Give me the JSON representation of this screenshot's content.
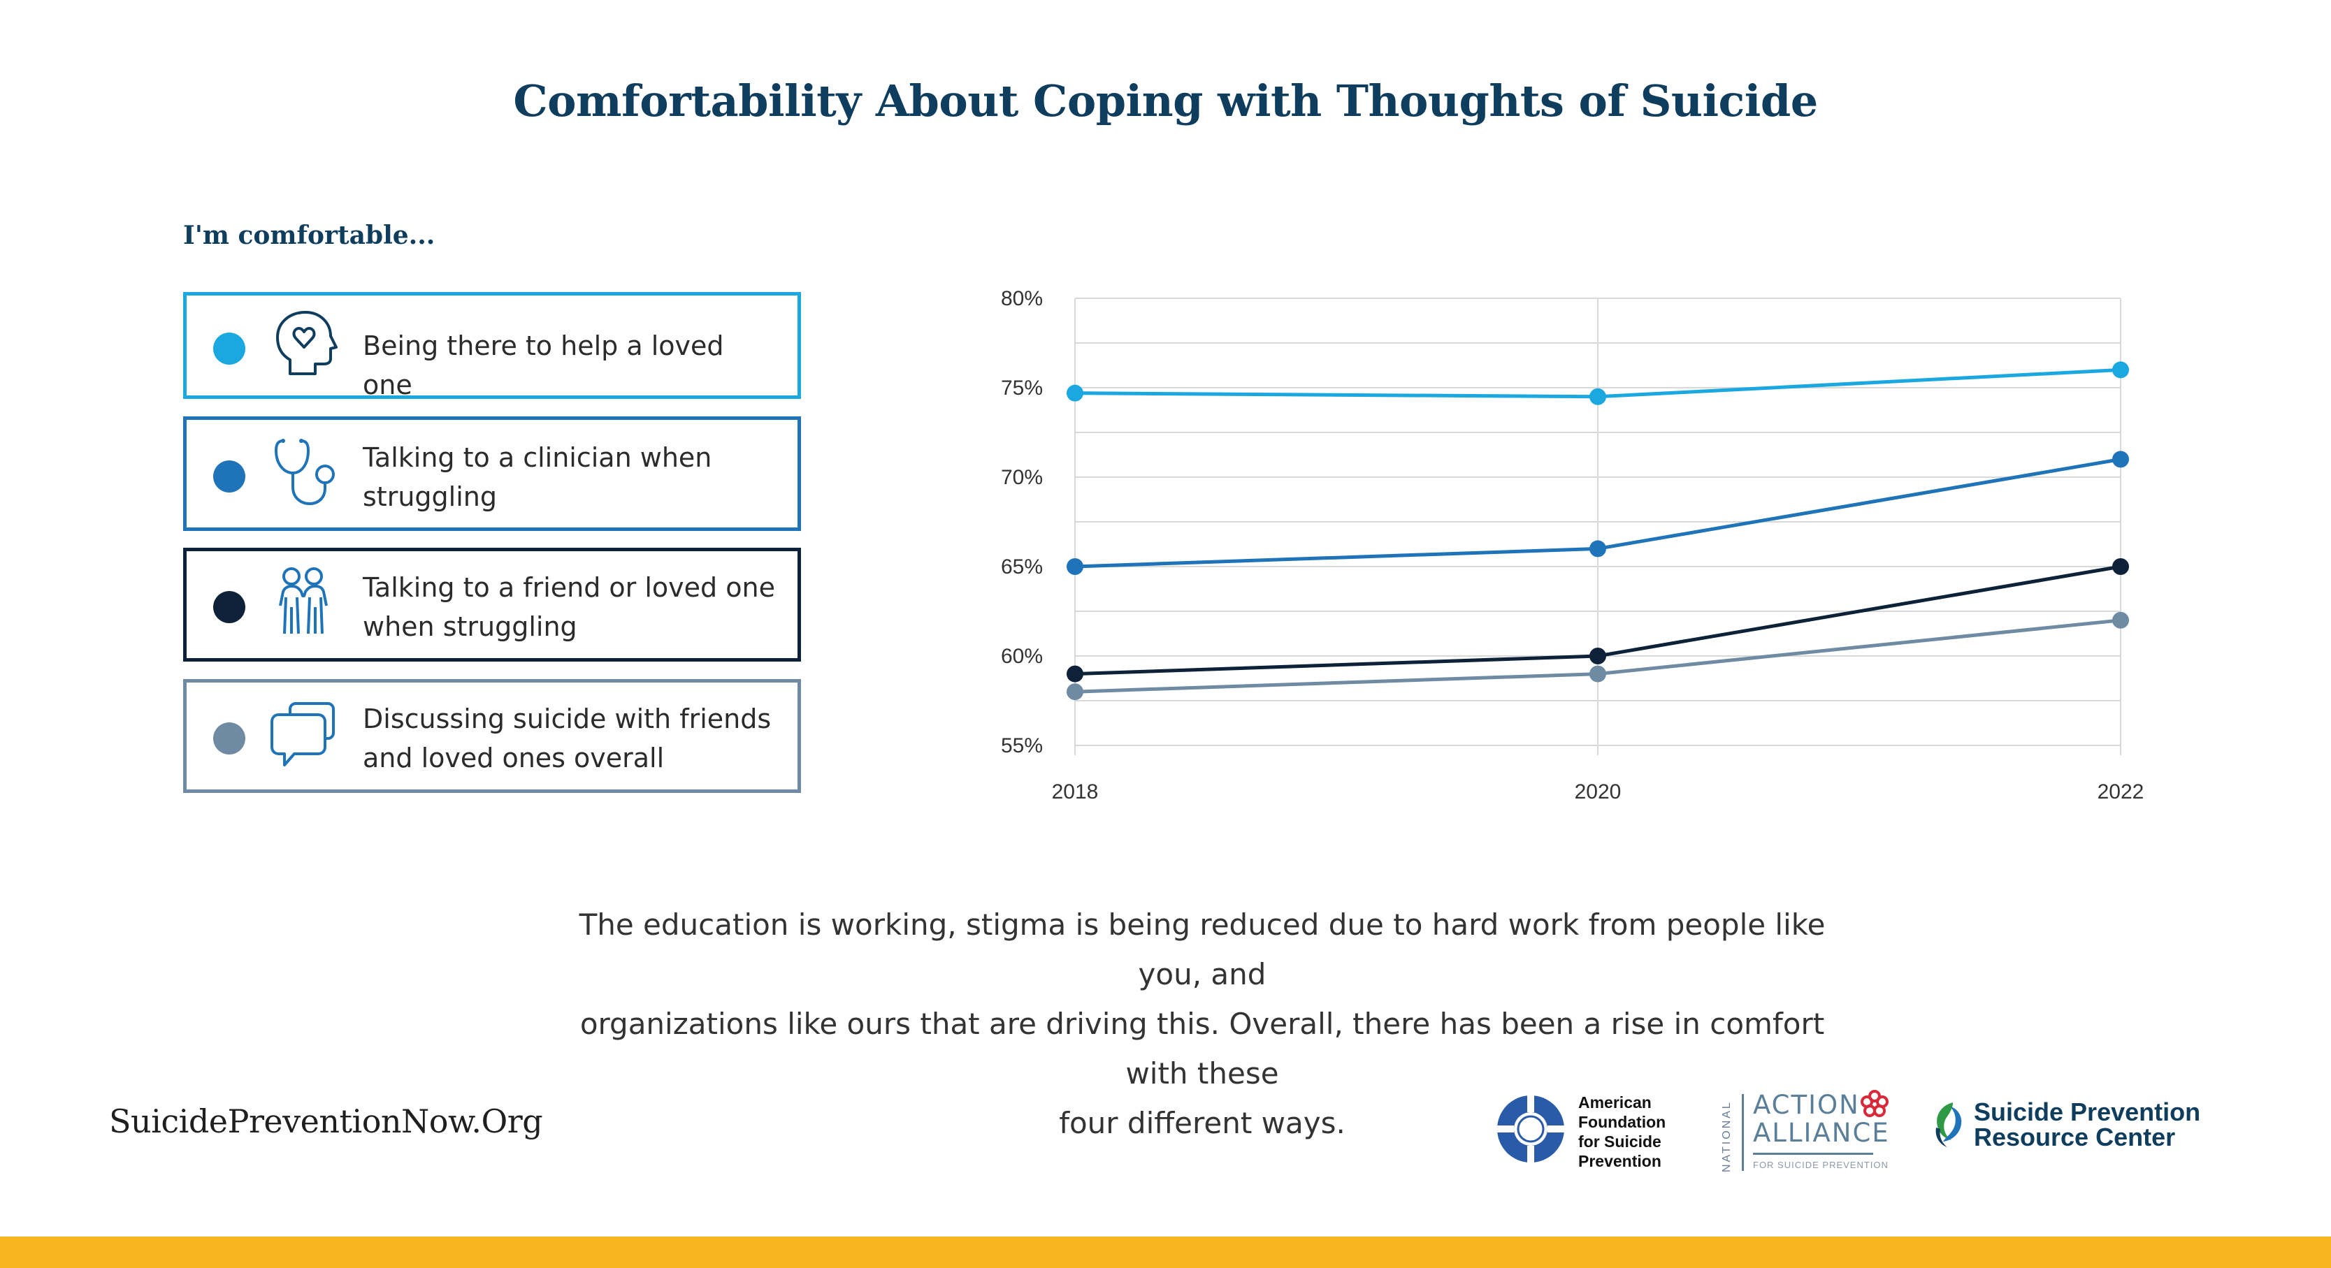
{
  "title": "Comfortability About Coping with Thoughts of Suicide",
  "legend": {
    "heading": "I'm comfortable...",
    "items": [
      {
        "text_line1": "Being there to help a loved one",
        "text_line2": "",
        "color": "#1ba8e0",
        "icon": "head-heart-icon"
      },
      {
        "text_line1": "Talking to a clinician when",
        "text_line2": "struggling",
        "color": "#1f74b9",
        "icon": "stethoscope-icon"
      },
      {
        "text_line1": "Talking to a friend or loved one",
        "text_line2": "when struggling",
        "color": "#0d2238",
        "icon": "two-people-icon"
      },
      {
        "text_line1": "Discussing suicide with friends",
        "text_line2": "and loved ones overall",
        "color": "#6e8ba3",
        "icon": "chat-bubbles-icon"
      }
    ]
  },
  "chart_data": {
    "type": "line",
    "x": [
      "2018",
      "2020",
      "2022"
    ],
    "ylim": [
      55,
      80
    ],
    "yticks": [
      "55%",
      "60%",
      "65%",
      "70%",
      "75%",
      "80%"
    ],
    "grid": true,
    "series": [
      {
        "values": [
          74.7,
          74.5,
          76.0
        ],
        "color": "#1ba8e0"
      },
      {
        "values": [
          65.0,
          66.0,
          71.0
        ],
        "color": "#1f74b9"
      },
      {
        "values": [
          59.0,
          60.0,
          65.0
        ],
        "color": "#0d2238"
      },
      {
        "values": [
          58.0,
          59.0,
          62.0
        ],
        "color": "#6e8ba3"
      }
    ]
  },
  "body_text": {
    "line1": "The education is working, stigma is being reduced due to hard work from people like you, and",
    "line2": "organizations like ours that are driving this. Overall, there has been a rise in comfort with these",
    "line3": "four different ways."
  },
  "footer": {
    "url": "SuicidePreventionNow.Org",
    "afsp_logo_text": "American\nFoundation\nfor Suicide\nPrevention",
    "naa_national": "NATIONAL",
    "naa_line1": "ACTION",
    "naa_line2": "ALLIANCE",
    "naa_sub": "FOR SUICIDE PREVENTION",
    "sprc_text": "Suicide Prevention\nResource Center",
    "bar_color": "#f7b51f"
  }
}
